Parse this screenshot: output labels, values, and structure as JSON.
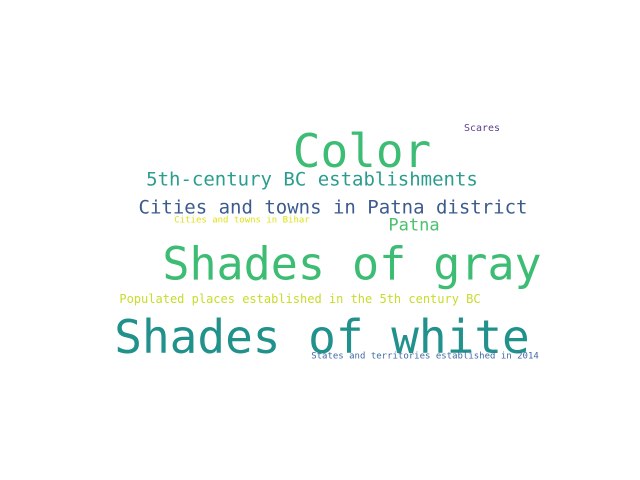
{
  "words": [
    {
      "id": "color",
      "text": "Color",
      "color": "#3dbc74"
    },
    {
      "id": "shades-of-gray",
      "text": "Shades of gray",
      "color": "#3dbc74"
    },
    {
      "id": "shades-of-white",
      "text": "Shades of white",
      "color": "#21918c"
    },
    {
      "id": "fifth-century-bc-establishments",
      "text": "5th-century BC establishments",
      "color": "#2a9d8f"
    },
    {
      "id": "cities-towns-patna-district",
      "text": "Cities and towns in Patna district",
      "color": "#3b5b8e"
    },
    {
      "id": "patna",
      "text": "Patna",
      "color": "#4ac16d"
    },
    {
      "id": "cities-towns-bihar",
      "text": "Cities and towns in Bihar",
      "color": "#dde318"
    },
    {
      "id": "populated-places-5th-century-bc",
      "text": "Populated places established in the 5th century BC",
      "color": "#c8dc2a"
    },
    {
      "id": "states-territories-2014",
      "text": "States and territories established in 2014",
      "color": "#3e6aa0"
    },
    {
      "id": "scares",
      "text": "Scares",
      "color": "#5b3f8c"
    }
  ]
}
